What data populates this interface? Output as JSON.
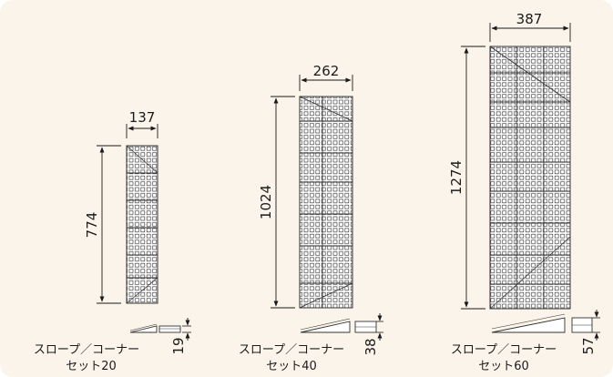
{
  "sets": [
    {
      "width": "137",
      "height": "774",
      "thickness": "19",
      "caption_line1": "スロープ／コーナー",
      "caption_line2": "セット20"
    },
    {
      "width": "262",
      "height": "1024",
      "thickness": "38",
      "caption_line1": "スロープ／コーナー",
      "caption_line2": "セット40"
    },
    {
      "width": "387",
      "height": "1274",
      "thickness": "57",
      "caption_line1": "スロープ／コーナー",
      "caption_line2": "セット60"
    }
  ]
}
